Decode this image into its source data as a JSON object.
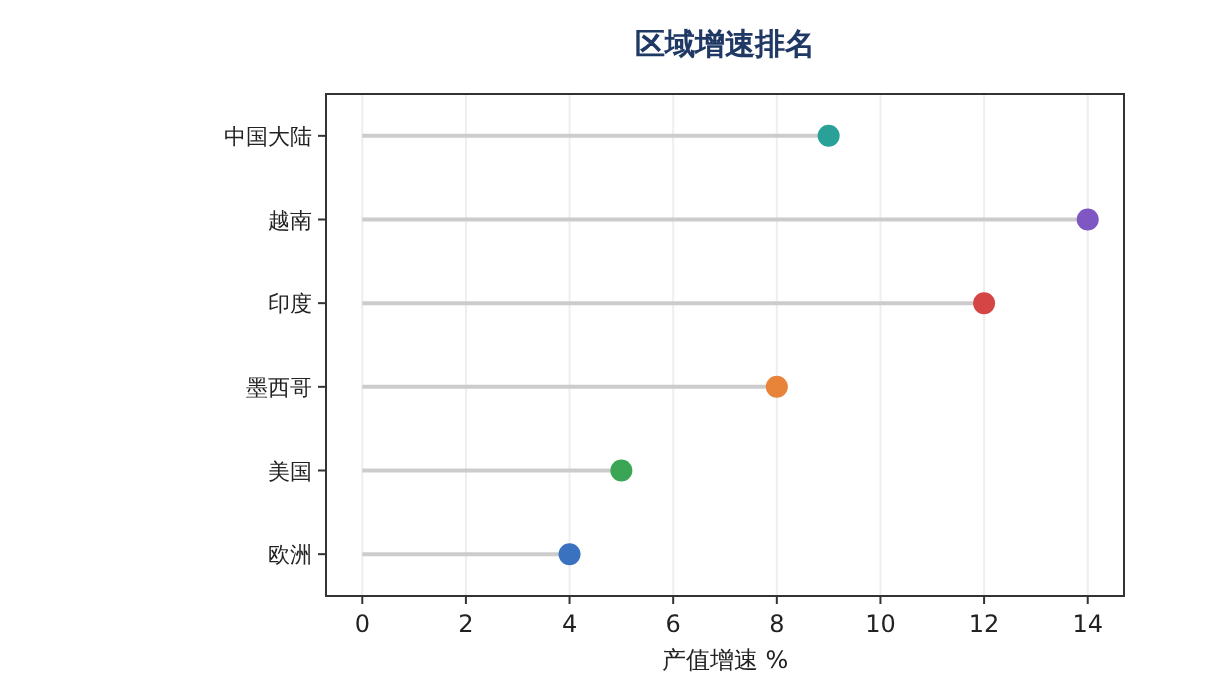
{
  "chart_data": {
    "type": "lollipop",
    "orientation": "horizontal",
    "title": "区域增速排名",
    "xlabel": "产值增速 %",
    "categories": [
      "中国大陆",
      "越南",
      "印度",
      "墨西哥",
      "美国",
      "欧洲"
    ],
    "values": [
      9,
      14,
      12,
      8,
      5,
      4
    ],
    "colors": [
      "#2aa198",
      "#7e57c2",
      "#d64545",
      "#e8833a",
      "#3aa655",
      "#3a72c0"
    ],
    "xlim": [
      -0.7,
      14.7
    ],
    "xticks": [
      0,
      2,
      4,
      6,
      8,
      10,
      12,
      14
    ],
    "grid": "x",
    "marker": "circle"
  }
}
